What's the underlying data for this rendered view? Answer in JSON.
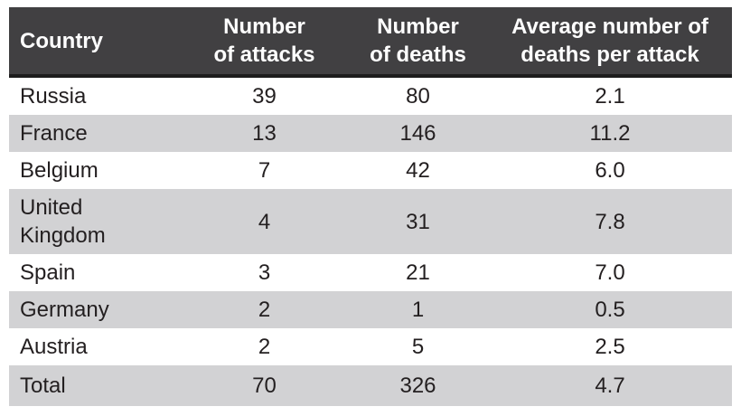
{
  "chart_data": {
    "type": "table",
    "title": "",
    "columns": [
      "Country",
      "Number of attacks",
      "Number of deaths",
      "Average number of deaths per attack"
    ],
    "rows": [
      [
        "Russia",
        39,
        80,
        2.1
      ],
      [
        "France",
        13,
        146,
        11.2
      ],
      [
        "Belgium",
        7,
        42,
        6.0
      ],
      [
        "United Kingdom",
        4,
        31,
        7.8
      ],
      [
        "Spain",
        3,
        21,
        7.0
      ],
      [
        "Germany",
        2,
        1,
        0.5
      ],
      [
        "Austria",
        2,
        5,
        2.5
      ]
    ],
    "total_row": [
      "Total",
      70,
      326,
      4.7
    ],
    "layout_hints": {
      "header_style": "dark charcoal band, white bold text, thin black underline",
      "striping": "alternating white / light gray rows starting white",
      "total_row_style": "light gray background, bold text",
      "alignment": "first column left, numeric columns centered"
    }
  },
  "table": {
    "header": {
      "country": "Country",
      "attacks_line1": "Number",
      "attacks_line2": "of attacks",
      "deaths_line1": "Number",
      "deaths_line2": "of deaths",
      "avg_line1": "Average number of",
      "avg_line2": "deaths per attack"
    },
    "rows": [
      {
        "country": "Russia",
        "attacks": "39",
        "deaths": "80",
        "avg": "2.1"
      },
      {
        "country": "France",
        "attacks": "13",
        "deaths": "146",
        "avg": "11.2"
      },
      {
        "country": "Belgium",
        "attacks": "7",
        "deaths": "42",
        "avg": "6.0"
      },
      {
        "country": "United Kingdom",
        "attacks": "4",
        "deaths": "31",
        "avg": "7.8"
      },
      {
        "country": "Spain",
        "attacks": "3",
        "deaths": "21",
        "avg": "7.0"
      },
      {
        "country": "Germany",
        "attacks": "2",
        "deaths": "1",
        "avg": "0.5"
      },
      {
        "country": "Austria",
        "attacks": "2",
        "deaths": "5",
        "avg": "2.5"
      }
    ],
    "total": {
      "country": "Total",
      "attacks": "70",
      "deaths": "326",
      "avg": "4.7"
    }
  },
  "colors": {
    "header_bg": "#414042",
    "header_text": "#ffffff",
    "header_underline": "#1d1d1d",
    "stripe_bg": "#d2d2d4",
    "body_text": "#231f20",
    "page_bg": "#ffffff"
  }
}
